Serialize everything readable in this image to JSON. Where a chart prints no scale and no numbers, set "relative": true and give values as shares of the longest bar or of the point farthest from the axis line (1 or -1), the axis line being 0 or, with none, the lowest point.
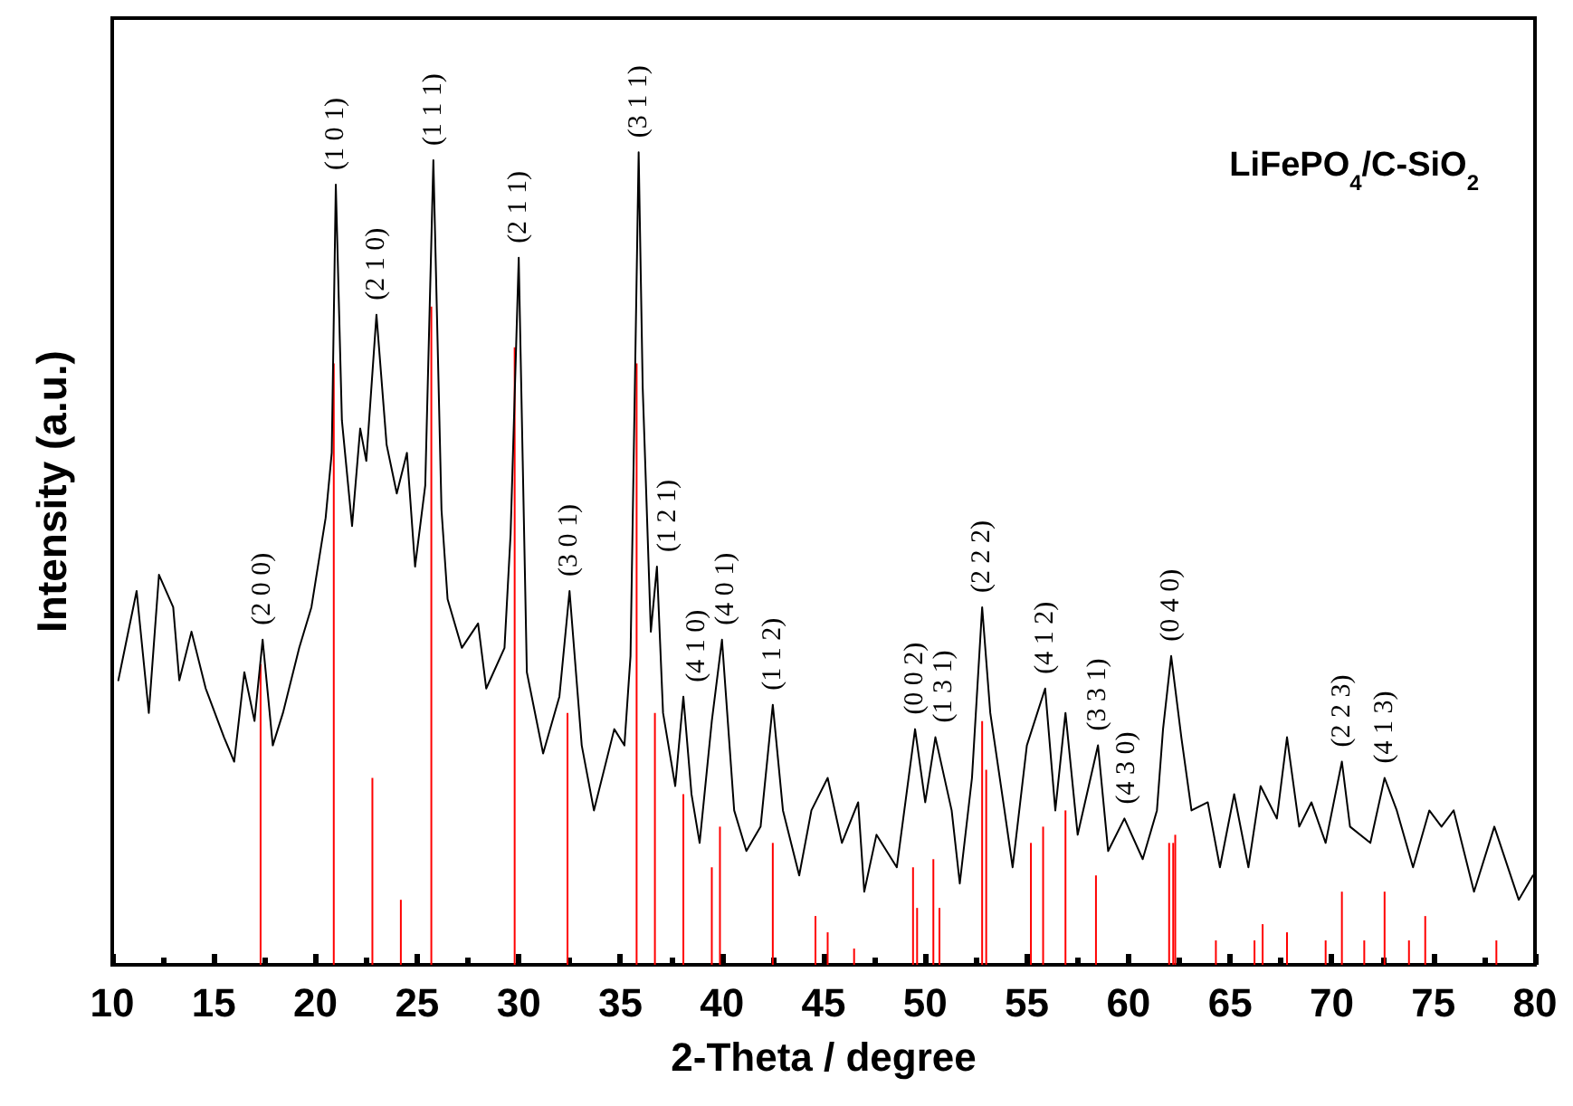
{
  "chart_data": {
    "type": "line",
    "relative": true,
    "xlabel": "2-Theta / degree",
    "ylabel": "Intensity (a.u.)",
    "xlim": [
      10,
      80
    ],
    "xticks": [
      10,
      15,
      20,
      25,
      30,
      35,
      40,
      45,
      50,
      55,
      60,
      65,
      70,
      75,
      80
    ],
    "marker": "none",
    "line_style": "solid",
    "series": [
      {
        "color": "#000000",
        "x": [
          10.3,
          11.2,
          11.8,
          12.3,
          13.0,
          13.3,
          13.9,
          14.6,
          15.5,
          16.0,
          16.5,
          17.0,
          17.4,
          17.9,
          18.4,
          19.2,
          19.8,
          20.5,
          20.8,
          21.0,
          21.3,
          21.8,
          22.2,
          22.5,
          23.0,
          23.5,
          24.0,
          24.5,
          24.9,
          25.4,
          25.8,
          26.2,
          26.5,
          27.2,
          28.0,
          28.4,
          29.3,
          29.6,
          30.0,
          30.4,
          31.2,
          32.0,
          32.5,
          33.1,
          33.7,
          34.7,
          35.2,
          35.5,
          35.9,
          36.1,
          36.5,
          36.8,
          37.1,
          37.7,
          38.1,
          38.5,
          38.9,
          39.5,
          40.0,
          40.6,
          41.2,
          41.9,
          42.5,
          43.0,
          43.8,
          44.4,
          45.2,
          45.9,
          46.7,
          47.0,
          47.6,
          48.6,
          49.5,
          50.0,
          50.5,
          51.3,
          51.7,
          52.3,
          52.8,
          53.2,
          53.9,
          54.3,
          55.0,
          55.9,
          56.4,
          56.9,
          57.5,
          58.5,
          59.0,
          59.8,
          60.7,
          61.4,
          61.7,
          62.1,
          62.6,
          63.1,
          63.9,
          64.5,
          65.2,
          65.9,
          66.5,
          67.3,
          67.8,
          68.4,
          69.0,
          69.7,
          70.5,
          70.9,
          71.9,
          72.6,
          73.2,
          74.0,
          74.8,
          75.4,
          76.0,
          77.0,
          78.0,
          79.2,
          79.9
        ],
        "values": [
          0.35,
          0.46,
          0.31,
          0.48,
          0.44,
          0.35,
          0.41,
          0.34,
          0.28,
          0.25,
          0.36,
          0.3,
          0.4,
          0.27,
          0.31,
          0.39,
          0.44,
          0.55,
          0.63,
          0.96,
          0.67,
          0.54,
          0.66,
          0.62,
          0.8,
          0.64,
          0.58,
          0.63,
          0.49,
          0.59,
          0.99,
          0.56,
          0.45,
          0.39,
          0.42,
          0.34,
          0.39,
          0.53,
          0.87,
          0.36,
          0.26,
          0.33,
          0.46,
          0.27,
          0.19,
          0.29,
          0.27,
          0.38,
          1.0,
          0.71,
          0.41,
          0.49,
          0.31,
          0.22,
          0.33,
          0.21,
          0.15,
          0.3,
          0.4,
          0.19,
          0.14,
          0.17,
          0.32,
          0.19,
          0.11,
          0.19,
          0.23,
          0.15,
          0.2,
          0.09,
          0.16,
          0.12,
          0.29,
          0.2,
          0.28,
          0.19,
          0.1,
          0.23,
          0.44,
          0.31,
          0.19,
          0.12,
          0.27,
          0.34,
          0.19,
          0.31,
          0.16,
          0.27,
          0.14,
          0.18,
          0.13,
          0.19,
          0.29,
          0.38,
          0.28,
          0.19,
          0.2,
          0.12,
          0.21,
          0.12,
          0.22,
          0.18,
          0.28,
          0.17,
          0.2,
          0.15,
          0.25,
          0.17,
          0.15,
          0.23,
          0.19,
          0.12,
          0.19,
          0.17,
          0.19,
          0.09,
          0.17,
          0.08,
          0.11
        ]
      },
      {
        "type": "bar",
        "color": "#ff0000",
        "x": [
          17.3,
          20.9,
          22.8,
          24.2,
          25.7,
          29.8,
          32.4,
          35.8,
          36.7,
          38.1,
          39.5,
          39.9,
          42.5,
          44.6,
          45.2,
          46.5,
          49.4,
          49.6,
          50.4,
          50.7,
          52.8,
          53.0,
          55.2,
          55.8,
          56.9,
          58.4,
          62.0,
          62.2,
          62.3,
          64.3,
          66.2,
          66.6,
          67.8,
          69.7,
          70.5,
          71.6,
          72.6,
          73.8,
          74.6,
          78.1
        ],
        "values": [
          0.37,
          0.74,
          0.23,
          0.08,
          0.81,
          0.76,
          0.31,
          0.74,
          0.31,
          0.21,
          0.12,
          0.17,
          0.15,
          0.06,
          0.04,
          0.02,
          0.12,
          0.07,
          0.13,
          0.07,
          0.3,
          0.24,
          0.15,
          0.17,
          0.19,
          0.11,
          0.15,
          0.15,
          0.16,
          0.03,
          0.03,
          0.05,
          0.04,
          0.03,
          0.09,
          0.03,
          0.09,
          0.03,
          0.06,
          0.03
        ]
      }
    ],
    "annotations": [
      "LiFePO$_{4}$/C-SiO$_{2}$",
      {
        "text": "(2 0 0)",
        "x": 17.4,
        "y": 0.4
      },
      {
        "text": "(1 0 1)",
        "x": 21.0,
        "y": 0.96
      },
      {
        "text": "(2 1 0)",
        "x": 23.0,
        "y": 0.8
      },
      {
        "text": "(1 1 1)",
        "x": 25.8,
        "y": 0.99
      },
      {
        "text": "(2 1 1)",
        "x": 30.0,
        "y": 0.87
      },
      {
        "text": "(3 0 1)",
        "x": 32.5,
        "y": 0.46
      },
      {
        "text": "(3 1 1)",
        "x": 35.9,
        "y": 1.0
      },
      {
        "text": "(4 1 0)",
        "x": 38.1,
        "y": 0.33
      },
      {
        "text": "(1 2 1)",
        "x": 36.8,
        "y": 0.49
      },
      {
        "text": "(4 0 1)",
        "x": 40.0,
        "y": 0.4
      },
      {
        "text": "(1 1 2)",
        "x": 42.5,
        "y": 0.32
      },
      {
        "text": "(0 0 2)",
        "x": 49.5,
        "y": 0.29
      },
      {
        "text": "(1 3 1)",
        "x": 50.5,
        "y": 0.28
      },
      {
        "text": "(2 2 2)",
        "x": 52.8,
        "y": 0.44
      },
      {
        "text": "(4 1 2)",
        "x": 55.9,
        "y": 0.34
      },
      {
        "text": "(3 3 1)",
        "x": 58.5,
        "y": 0.27
      },
      {
        "text": "(4 3 0)",
        "x": 59.8,
        "y": 0.18
      },
      {
        "text": "(0 4 0)",
        "x": 62.1,
        "y": 0.38
      },
      {
        "text": "(2 2 3)",
        "x": 70.5,
        "y": 0.25
      },
      {
        "text": "(4 1 3)",
        "x": 72.6,
        "y": 0.23
      }
    ]
  }
}
